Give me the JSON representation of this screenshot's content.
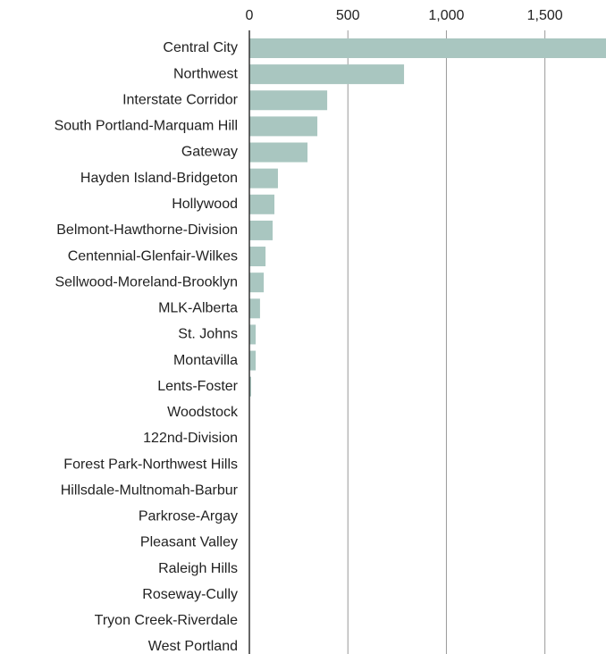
{
  "chart_data": {
    "type": "bar",
    "orientation": "horizontal",
    "categories": [
      "Central City",
      "Northwest",
      "Interstate Corridor",
      "South Portland-Marquam Hill",
      "Gateway",
      "Hayden Island-Bridgeton",
      "Hollywood",
      "Belmont-Hawthorne-Division",
      "Centennial-Glenfair-Wilkes",
      "Sellwood-Moreland-Brooklyn",
      "MLK-Alberta",
      "St. Johns",
      "Montavilla",
      "Lents-Foster",
      "Woodstock",
      "122nd-Division",
      "Forest Park-Northwest Hills",
      "Hillsdale-Multnomah-Barbur",
      "Parkrose-Argay",
      "Pleasant Valley",
      "Raleigh Hills",
      "Roseway-Cully",
      "Tryon Creek-Riverdale",
      "West Portland"
    ],
    "values": [
      1810,
      785,
      395,
      345,
      295,
      145,
      127,
      118,
      82,
      73,
      54,
      32,
      32,
      9,
      0,
      0,
      0,
      0,
      0,
      0,
      0,
      0,
      0,
      0
    ],
    "color": "#a9c6c0",
    "xlim": [
      0,
      1810
    ],
    "xticks": [
      0,
      500,
      {
        "value": 1000,
        "label": "1,000"
      },
      {
        "value": 1500,
        "label": "1,500"
      }
    ],
    "grid": true
  }
}
